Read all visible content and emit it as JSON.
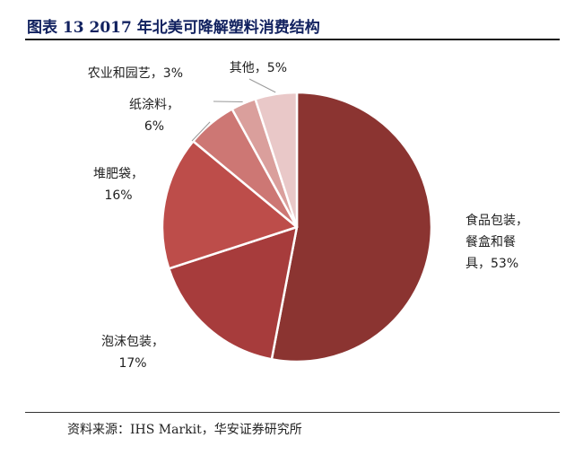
{
  "title": "图表 13 2017 年北美可降解塑料消费结构",
  "source": "资料来源：IHS Markit，华安证券研究所",
  "chart_data": {
    "type": "pie",
    "title": "图表 13 2017 年北美可降解塑料消费结构",
    "start_angle_deg": 0,
    "direction": "clockwise",
    "slices": [
      {
        "name": "食品包装，餐盒和餐具",
        "value": 53,
        "color": "#8b3431",
        "label_lines": [
          "食品包装，",
          "餐盒和餐",
          "具，53%"
        ]
      },
      {
        "name": "泡沫包装",
        "value": 17,
        "color": "#a73c3c",
        "label_lines": [
          "泡沫包装，",
          "17%"
        ]
      },
      {
        "name": "堆肥袋",
        "value": 16,
        "color": "#bd4d4a",
        "label_lines": [
          "堆肥袋，",
          "16%"
        ]
      },
      {
        "name": "纸涂料",
        "value": 6,
        "color": "#cd7774",
        "label_lines": [
          "纸涂料，",
          "6%"
        ]
      },
      {
        "name": "农业和园艺",
        "value": 3,
        "color": "#da9f9c",
        "label_lines": [
          "农业和园艺，3%"
        ]
      },
      {
        "name": "其他",
        "value": 5,
        "color": "#e9c8c8",
        "label_lines": [
          "其他，5%"
        ]
      }
    ]
  }
}
